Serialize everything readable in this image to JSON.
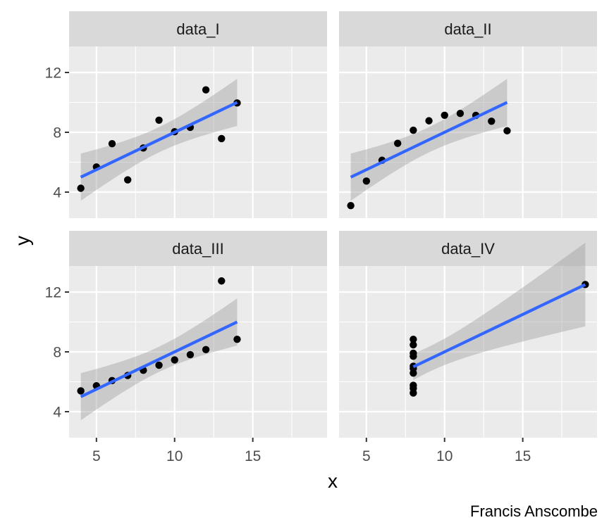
{
  "chart_data": {
    "type": "scatter",
    "layout": "facet_wrap 2x2, shared axes",
    "xlabel": "x",
    "ylabel": "y",
    "caption": "Francis Anscombe",
    "xlim": [
      3.25,
      19.75
    ],
    "ylim": [
      2.26,
      13.74
    ],
    "x_ticks": [
      5,
      10,
      15
    ],
    "y_ticks": [
      4,
      8,
      12
    ],
    "grid": true,
    "smooth": {
      "method": "lm",
      "confidence_band": true,
      "line_color": "#3366FF",
      "band_color": "#999999"
    },
    "point_color": "#000000",
    "panel_background": "#EBEBEB",
    "strip_background": "#D9D9D9",
    "facets": [
      {
        "label": "data_I",
        "points": [
          [
            10,
            8.04
          ],
          [
            8,
            6.95
          ],
          [
            13,
            7.58
          ],
          [
            9,
            8.81
          ],
          [
            11,
            8.33
          ],
          [
            14,
            9.96
          ],
          [
            6,
            7.24
          ],
          [
            4,
            4.26
          ],
          [
            12,
            10.84
          ],
          [
            7,
            4.82
          ],
          [
            5,
            5.68
          ]
        ],
        "fit": {
          "intercept": 3.0,
          "slope": 0.5,
          "x_range": [
            4,
            14
          ]
        }
      },
      {
        "label": "data_II",
        "points": [
          [
            10,
            9.14
          ],
          [
            8,
            8.14
          ],
          [
            13,
            8.74
          ],
          [
            9,
            8.77
          ],
          [
            11,
            9.26
          ],
          [
            14,
            8.1
          ],
          [
            6,
            6.13
          ],
          [
            4,
            3.1
          ],
          [
            12,
            9.13
          ],
          [
            7,
            7.26
          ],
          [
            5,
            4.74
          ]
        ],
        "fit": {
          "intercept": 3.0,
          "slope": 0.5,
          "x_range": [
            4,
            14
          ]
        }
      },
      {
        "label": "data_III",
        "points": [
          [
            10,
            7.46
          ],
          [
            8,
            6.77
          ],
          [
            13,
            12.74
          ],
          [
            9,
            7.11
          ],
          [
            11,
            7.81
          ],
          [
            14,
            8.84
          ],
          [
            6,
            6.08
          ],
          [
            4,
            5.39
          ],
          [
            12,
            8.15
          ],
          [
            7,
            6.42
          ],
          [
            5,
            5.73
          ]
        ],
        "fit": {
          "intercept": 3.0,
          "slope": 0.5,
          "x_range": [
            4,
            14
          ]
        }
      },
      {
        "label": "data_IV",
        "points": [
          [
            8,
            6.58
          ],
          [
            8,
            5.76
          ],
          [
            8,
            7.71
          ],
          [
            8,
            8.84
          ],
          [
            8,
            8.47
          ],
          [
            8,
            7.04
          ],
          [
            8,
            5.25
          ],
          [
            19,
            12.5
          ],
          [
            8,
            5.56
          ],
          [
            8,
            7.91
          ],
          [
            8,
            6.89
          ]
        ],
        "fit": {
          "intercept": 3.0,
          "slope": 0.5,
          "x_range": [
            8,
            19
          ]
        }
      }
    ]
  }
}
